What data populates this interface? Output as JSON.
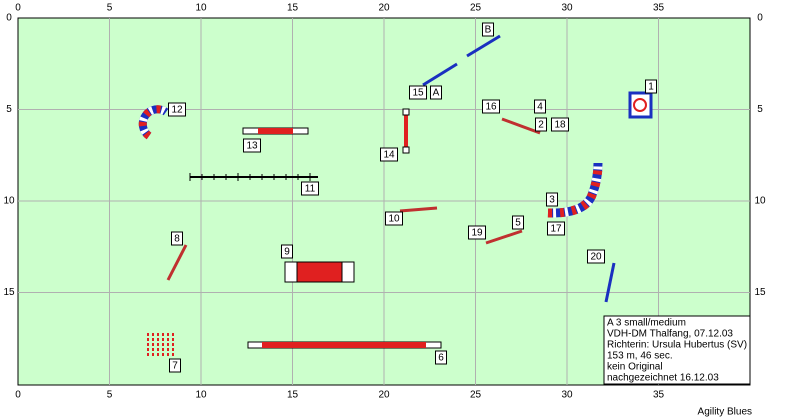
{
  "axes": {
    "x_ticks": [
      0,
      5,
      10,
      15,
      20,
      25,
      30,
      35
    ],
    "y_ticks": [
      0,
      5,
      10,
      15
    ]
  },
  "obstacle_labels": [
    "1",
    "B",
    "15",
    "A",
    "16",
    "4",
    "2",
    "18",
    "12",
    "13",
    "14",
    "11",
    "3",
    "17",
    "10",
    "5",
    "19",
    "8",
    "9",
    "20",
    "6",
    "7"
  ],
  "info": [
    "A 3 small/medium",
    "VDH-DM Thalfang, 07.12.03",
    "Richterin: Ursula Hubertus (SV)",
    "153 m, 46 sec.",
    "kein Original",
    "nachgezeichnet 16.12.03"
  ],
  "footer": "Agility Blues"
}
